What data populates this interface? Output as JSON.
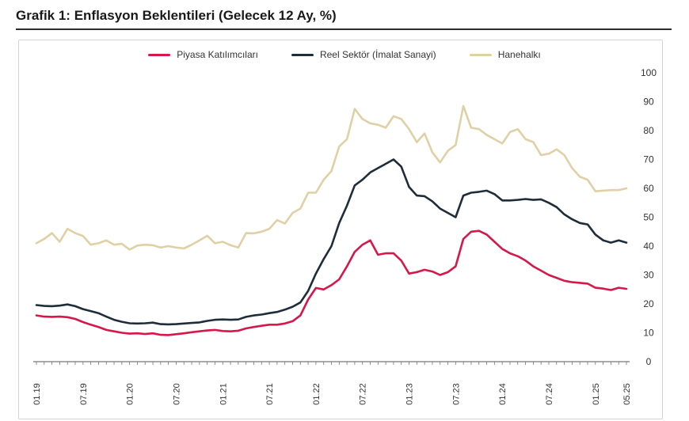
{
  "title": "Grafik 1: Enflasyon Beklentileri (Gelecek 12 Ay, %)",
  "chart_data": {
    "type": "line",
    "title": "Grafik 1: Enflasyon Beklentileri (Gelecek 12 Ay, %)",
    "ylim": [
      0,
      100
    ],
    "yticks": [
      0,
      10,
      20,
      30,
      40,
      50,
      60,
      70,
      80,
      90,
      100
    ],
    "y_axis_position": "right",
    "x_start": "01.19",
    "x_end": "05.25",
    "xtick_labels": [
      "01.19",
      "07.19",
      "01.20",
      "07.20",
      "01.21",
      "07.21",
      "01.22",
      "07.22",
      "01.23",
      "07.23",
      "01.24",
      "07.24",
      "01.25",
      "05.25"
    ],
    "legend_position": "top-center",
    "grid": false,
    "series": [
      {
        "name": "Piyasa Katılımcıları",
        "color": "#d6174a",
        "points": [
          [
            0,
            16
          ],
          [
            1,
            15.6
          ],
          [
            2,
            15.5
          ],
          [
            3,
            15.6
          ],
          [
            4,
            15.4
          ],
          [
            5,
            14.8
          ],
          [
            6,
            13.7
          ],
          [
            7,
            12.8
          ],
          [
            8,
            12
          ],
          [
            9,
            11
          ],
          [
            10,
            10.5
          ],
          [
            11,
            10
          ],
          [
            12,
            9.7
          ],
          [
            13,
            9.8
          ],
          [
            14,
            9.6
          ],
          [
            15,
            9.8
          ],
          [
            16,
            9.3
          ],
          [
            17,
            9.2
          ],
          [
            18,
            9.5
          ],
          [
            19,
            9.8
          ],
          [
            20,
            10.2
          ],
          [
            21,
            10.5
          ],
          [
            22,
            10.8
          ],
          [
            23,
            11
          ],
          [
            24,
            10.6
          ],
          [
            25,
            10.5
          ],
          [
            26,
            10.7
          ],
          [
            27,
            11.5
          ],
          [
            28,
            12
          ],
          [
            29,
            12.4
          ],
          [
            30,
            12.8
          ],
          [
            31,
            12.8
          ],
          [
            32,
            13.2
          ],
          [
            33,
            14
          ],
          [
            34,
            16
          ],
          [
            35,
            21.5
          ],
          [
            36,
            25.5
          ],
          [
            37,
            25
          ],
          [
            38,
            26.5
          ],
          [
            39,
            28.5
          ],
          [
            40,
            33
          ],
          [
            41,
            38
          ],
          [
            42,
            40.5
          ],
          [
            43,
            42
          ],
          [
            44,
            37
          ],
          [
            45,
            37.5
          ],
          [
            46,
            37.5
          ],
          [
            47,
            35
          ],
          [
            48,
            30.5
          ],
          [
            49,
            31
          ],
          [
            50,
            31.8
          ],
          [
            51,
            31.2
          ],
          [
            52,
            30
          ],
          [
            53,
            31
          ],
          [
            54,
            33
          ],
          [
            55,
            42.5
          ],
          [
            56,
            45
          ],
          [
            57,
            45.3
          ],
          [
            58,
            44
          ],
          [
            59,
            41.5
          ],
          [
            60,
            39
          ],
          [
            61,
            37.5
          ],
          [
            62,
            36.5
          ],
          [
            63,
            35
          ],
          [
            64,
            33
          ],
          [
            65,
            31.5
          ],
          [
            66,
            30
          ],
          [
            67,
            29
          ],
          [
            68,
            28
          ],
          [
            69,
            27.5
          ],
          [
            70,
            27.3
          ],
          [
            71,
            27
          ],
          [
            72,
            25.6
          ],
          [
            73,
            25.3
          ],
          [
            74,
            24.8
          ],
          [
            75,
            25.6
          ],
          [
            76,
            25.2
          ]
        ]
      },
      {
        "name": "Reel Sektör (İmalat Sanayi)",
        "color": "#1f2d3a",
        "points": [
          [
            0,
            19.6
          ],
          [
            1,
            19.3
          ],
          [
            2,
            19.2
          ],
          [
            3,
            19.4
          ],
          [
            4,
            19.8
          ],
          [
            5,
            19.2
          ],
          [
            6,
            18.2
          ],
          [
            7,
            17.5
          ],
          [
            8,
            16.8
          ],
          [
            9,
            15.6
          ],
          [
            10,
            14.5
          ],
          [
            11,
            13.8
          ],
          [
            12,
            13.3
          ],
          [
            13,
            13.2
          ],
          [
            14,
            13.3
          ],
          [
            15,
            13.5
          ],
          [
            16,
            13
          ],
          [
            17,
            12.9
          ],
          [
            18,
            13
          ],
          [
            19,
            13.2
          ],
          [
            20,
            13.4
          ],
          [
            21,
            13.6
          ],
          [
            22,
            14.1
          ],
          [
            23,
            14.5
          ],
          [
            24,
            14.6
          ],
          [
            25,
            14.5
          ],
          [
            26,
            14.6
          ],
          [
            27,
            15.5
          ],
          [
            28,
            16
          ],
          [
            29,
            16.3
          ],
          [
            30,
            16.8
          ],
          [
            31,
            17.2
          ],
          [
            32,
            18
          ],
          [
            33,
            19
          ],
          [
            34,
            20.5
          ],
          [
            35,
            24.5
          ],
          [
            36,
            30.5
          ],
          [
            37,
            35.5
          ],
          [
            38,
            40
          ],
          [
            39,
            48
          ],
          [
            40,
            54
          ],
          [
            41,
            61
          ],
          [
            42,
            63
          ],
          [
            43,
            65.5
          ],
          [
            44,
            67
          ],
          [
            45,
            68.5
          ],
          [
            46,
            70
          ],
          [
            47,
            67.5
          ],
          [
            48,
            60.5
          ],
          [
            49,
            57.5
          ],
          [
            50,
            57.3
          ],
          [
            51,
            55.5
          ],
          [
            52,
            53
          ],
          [
            53,
            51.5
          ],
          [
            54,
            50
          ],
          [
            55,
            57.5
          ],
          [
            56,
            58.5
          ],
          [
            57,
            58.8
          ],
          [
            58,
            59.2
          ],
          [
            59,
            58
          ],
          [
            60,
            55.8
          ],
          [
            61,
            55.8
          ],
          [
            62,
            56
          ],
          [
            63,
            56.3
          ],
          [
            64,
            56
          ],
          [
            65,
            56.2
          ],
          [
            66,
            55
          ],
          [
            67,
            53.5
          ],
          [
            68,
            51
          ],
          [
            69,
            49.3
          ],
          [
            70,
            48
          ],
          [
            71,
            47.5
          ],
          [
            72,
            44
          ],
          [
            73,
            42
          ],
          [
            74,
            41.2
          ],
          [
            75,
            42
          ],
          [
            76,
            41.2
          ]
        ]
      },
      {
        "name": "Hanehalkı",
        "color": "#dfd0a5",
        "points": [
          [
            0,
            41
          ],
          [
            1,
            42.5
          ],
          [
            2,
            44.5
          ],
          [
            3,
            41.5
          ],
          [
            4,
            46
          ],
          [
            5,
            44.5
          ],
          [
            6,
            43.5
          ],
          [
            7,
            40.5
          ],
          [
            8,
            41
          ],
          [
            9,
            42
          ],
          [
            10,
            40.5
          ],
          [
            11,
            40.8
          ],
          [
            12,
            38.8
          ],
          [
            13,
            40.2
          ],
          [
            14,
            40.5
          ],
          [
            15,
            40.3
          ],
          [
            16,
            39.5
          ],
          [
            17,
            40
          ],
          [
            18,
            39.5
          ],
          [
            19,
            39.2
          ],
          [
            20,
            40.5
          ],
          [
            21,
            42
          ],
          [
            22,
            43.6
          ],
          [
            23,
            41
          ],
          [
            24,
            41.5
          ],
          [
            25,
            40.3
          ],
          [
            26,
            39.5
          ],
          [
            27,
            44.5
          ],
          [
            28,
            44.4
          ],
          [
            29,
            45
          ],
          [
            30,
            46
          ],
          [
            31,
            49
          ],
          [
            32,
            47.8
          ],
          [
            33,
            51.5
          ],
          [
            34,
            53
          ],
          [
            35,
            58.5
          ],
          [
            36,
            58.5
          ],
          [
            37,
            63
          ],
          [
            38,
            66
          ],
          [
            39,
            74.5
          ],
          [
            40,
            77
          ],
          [
            41,
            87.5
          ],
          [
            42,
            84
          ],
          [
            43,
            82.5
          ],
          [
            44,
            82
          ],
          [
            45,
            81
          ],
          [
            46,
            85
          ],
          [
            47,
            84
          ],
          [
            48,
            80.5
          ],
          [
            49,
            76
          ],
          [
            50,
            79
          ],
          [
            51,
            72.5
          ],
          [
            52,
            69
          ],
          [
            53,
            73
          ],
          [
            54,
            75
          ],
          [
            55,
            88.5
          ],
          [
            56,
            81
          ],
          [
            57,
            80.5
          ],
          [
            58,
            78.5
          ],
          [
            59,
            77
          ],
          [
            60,
            75.5
          ],
          [
            61,
            79.5
          ],
          [
            62,
            80.5
          ],
          [
            63,
            77
          ],
          [
            64,
            76
          ],
          [
            65,
            71.5
          ],
          [
            66,
            72
          ],
          [
            67,
            73.5
          ],
          [
            68,
            71.5
          ],
          [
            69,
            67
          ],
          [
            70,
            64
          ],
          [
            71,
            63
          ],
          [
            72,
            59
          ],
          [
            73,
            59.2
          ],
          [
            74,
            59.4
          ],
          [
            75,
            59.4
          ],
          [
            76,
            60
          ]
        ]
      }
    ]
  }
}
